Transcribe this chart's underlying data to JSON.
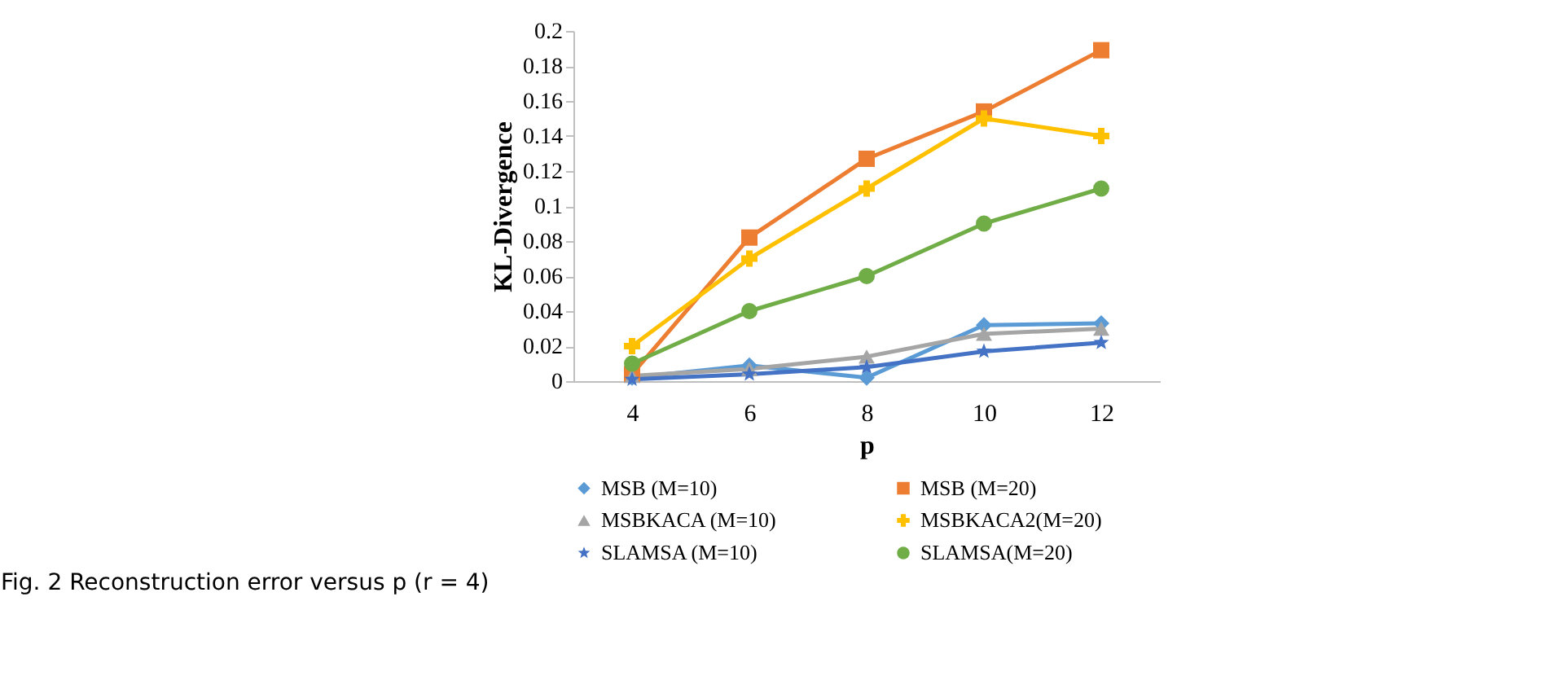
{
  "chart_data": {
    "type": "line",
    "xlabel": "p",
    "ylabel": "KL-Divergence",
    "categories": [
      "4",
      "6",
      "8",
      "10",
      "12"
    ],
    "ylim": [
      0,
      0.2
    ],
    "yticks": [
      0,
      0.02,
      0.04,
      0.06,
      0.08,
      0.1,
      0.12,
      0.14,
      0.16,
      0.18,
      0.2
    ],
    "grid": false,
    "legend": "bottom",
    "line_style": "solid",
    "series": [
      {
        "name": "MSB (M=10)",
        "color": "#5b9bd5",
        "marker": "diamond",
        "values": [
          0.002,
          0.009,
          0.002,
          0.032,
          0.033
        ]
      },
      {
        "name": "MSB (M=20)",
        "color": "#ed7d31",
        "marker": "square",
        "values": [
          0.004,
          0.082,
          0.127,
          0.154,
          0.189
        ]
      },
      {
        "name": "MSBKACA (M=10)",
        "color": "#a5a5a5",
        "marker": "triangle",
        "values": [
          0.003,
          0.007,
          0.014,
          0.027,
          0.03
        ]
      },
      {
        "name": "MSBKACA2(M=20)",
        "color": "#ffc000",
        "marker": "cross",
        "values": [
          0.02,
          0.07,
          0.11,
          0.15,
          0.14
        ]
      },
      {
        "name": "SLAMSA (M=10)",
        "color": "#4472c4",
        "marker": "star",
        "values": [
          0.001,
          0.004,
          0.008,
          0.017,
          0.022
        ]
      },
      {
        "name": "SLAMSA(M=20)",
        "color": "#70ad47",
        "marker": "circle",
        "values": [
          0.01,
          0.04,
          0.06,
          0.09,
          0.11
        ]
      }
    ],
    "annotations": [
      "Fig. 2  Reconstruction error versus p (r = 4)"
    ]
  }
}
